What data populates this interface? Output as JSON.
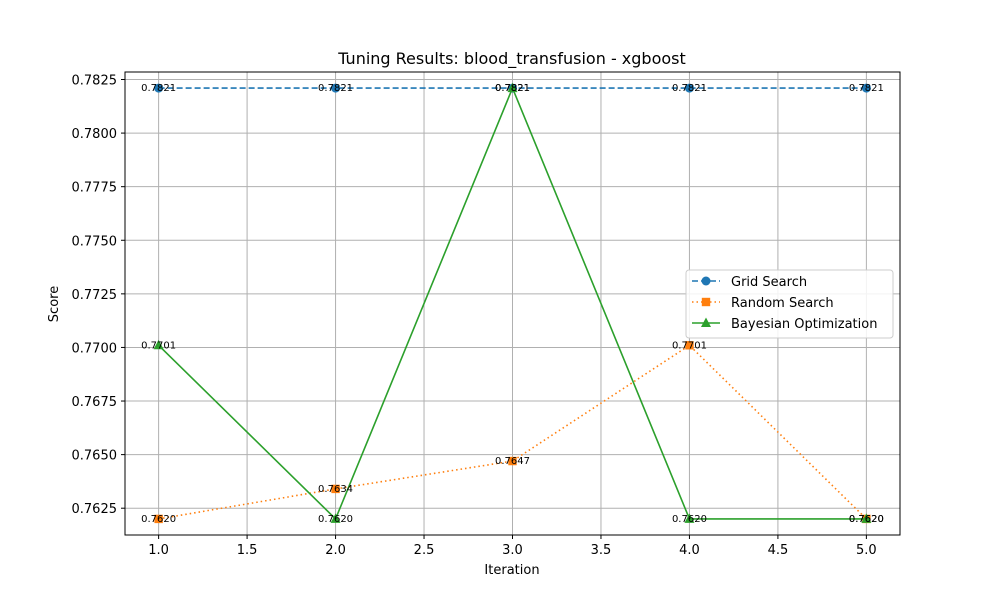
{
  "chart_data": {
    "type": "line",
    "title": "Tuning Results: blood_transfusion - xgboost",
    "xlabel": "Iteration",
    "ylabel": "Score",
    "xlim": [
      0.81,
      5.19
    ],
    "ylim": [
      0.76125,
      0.78285
    ],
    "xticks": [
      1.0,
      1.5,
      2.0,
      2.5,
      3.0,
      3.5,
      4.0,
      4.5,
      5.0
    ],
    "xtick_labels": [
      "1.0",
      "1.5",
      "2.0",
      "2.5",
      "3.0",
      "3.5",
      "4.0",
      "4.5",
      "5.0"
    ],
    "yticks": [
      0.7625,
      0.765,
      0.7675,
      0.77,
      0.7725,
      0.775,
      0.7775,
      0.78,
      0.7825
    ],
    "ytick_labels": [
      "0.7625",
      "0.7650",
      "0.7675",
      "0.7700",
      "0.7725",
      "0.7750",
      "0.7775",
      "0.7800",
      "0.7825"
    ],
    "grid": true,
    "legend_position": "center-right",
    "x": [
      1,
      2,
      3,
      4,
      5
    ],
    "series": [
      {
        "name": "Grid Search",
        "values": [
          0.7821,
          0.7821,
          0.7821,
          0.7821,
          0.7821
        ],
        "labels": [
          "0.7821",
          "0.7821",
          "0.7821",
          "0.7821",
          "0.7821"
        ],
        "color": "#1f77b4",
        "line_style": "dashed",
        "marker": "circle"
      },
      {
        "name": "Random Search",
        "values": [
          0.762,
          0.7634,
          0.7647,
          0.7701,
          0.762
        ],
        "labels": [
          "0.7620",
          "0.7634",
          "0.7647",
          "0.7701",
          "0.7620"
        ],
        "color": "#ff7f0e",
        "line_style": "dotted",
        "marker": "square"
      },
      {
        "name": "Bayesian Optimization",
        "values": [
          0.7701,
          0.762,
          0.7821,
          0.762,
          0.762
        ],
        "labels": [
          "0.7701",
          "0.7620",
          "0.7821",
          "0.7620",
          "0.7620"
        ],
        "color": "#2ca02c",
        "line_style": "solid",
        "marker": "triangle"
      }
    ]
  }
}
